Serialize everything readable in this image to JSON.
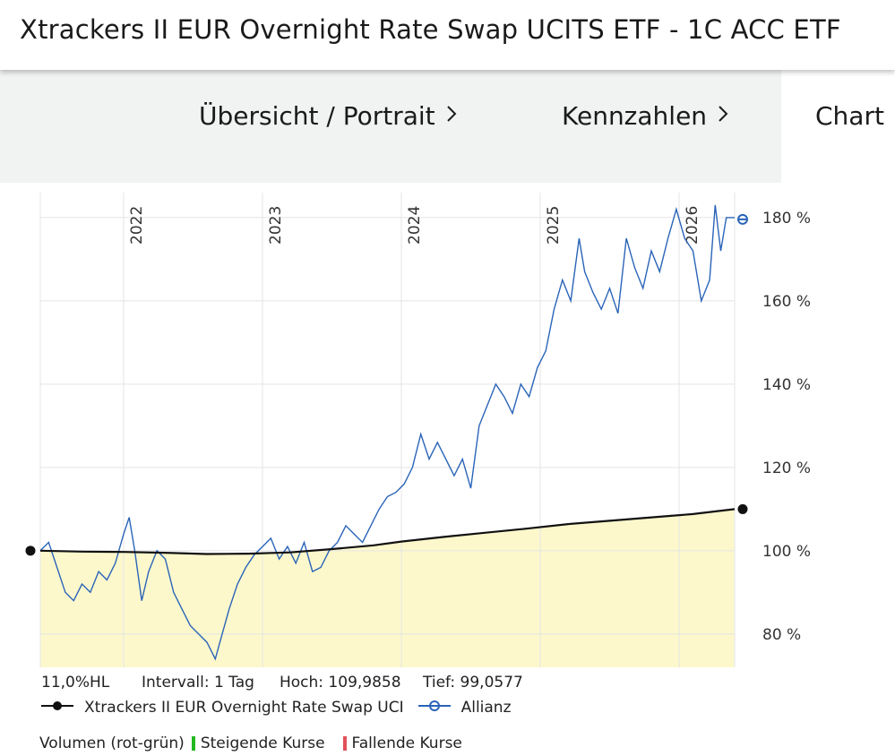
{
  "header": {
    "title": "Xtrackers II EUR Overnight Rate Swap UCITS ETF - 1C ACC ETF"
  },
  "nav": {
    "items": [
      {
        "label": "Übersicht / Portrait"
      },
      {
        "label": "Kennzahlen"
      },
      {
        "label": "Chart"
      }
    ]
  },
  "chart_info": {
    "range": "11,0%HL",
    "interval": "Intervall: 1 Tag",
    "high": "Hoch: 109,9858",
    "low": "Tief: 99,0577"
  },
  "legend": {
    "series_1": "Xtrackers II EUR Overnight Rate Swap UCI",
    "series_2": "Allianz"
  },
  "volume": {
    "label": "Volumen (rot-grün)",
    "up": "Steigende Kurse",
    "down": "Fallende Kurse",
    "up_color": "#22b822",
    "down_color": "#e0505a"
  },
  "chart_data": {
    "type": "line",
    "x_tick_labels": [
      "2022",
      "2023",
      "2024",
      "2025",
      "2026"
    ],
    "x_tick_positions": [
      2022.0,
      2023.0,
      2024.0,
      2025.0,
      2026.0
    ],
    "xlim": [
      2021.4,
      2026.4
    ],
    "ylim": [
      72,
      186
    ],
    "y_ticks": [
      80,
      100,
      120,
      140,
      160,
      180
    ],
    "y_tick_labels": [
      "80 %",
      "100 %",
      "120 %",
      "140 %",
      "160 %",
      "180 %"
    ],
    "grid": true,
    "series": [
      {
        "name": "Xtrackers II EUR Overnight Rate Swap UCI",
        "color": "#111111",
        "fill": "#fdf8cc",
        "points": [
          [
            2021.4,
            100.0
          ],
          [
            2021.7,
            99.8
          ],
          [
            2022.0,
            99.7
          ],
          [
            2022.3,
            99.5
          ],
          [
            2022.6,
            99.2
          ],
          [
            2022.9,
            99.3
          ],
          [
            2023.2,
            99.6
          ],
          [
            2023.5,
            100.4
          ],
          [
            2023.8,
            101.3
          ],
          [
            2024.0,
            102.2
          ],
          [
            2024.3,
            103.3
          ],
          [
            2024.6,
            104.3
          ],
          [
            2024.9,
            105.3
          ],
          [
            2025.2,
            106.4
          ],
          [
            2025.5,
            107.2
          ],
          [
            2025.8,
            108.0
          ],
          [
            2026.1,
            108.8
          ],
          [
            2026.4,
            109.98
          ]
        ]
      },
      {
        "name": "Allianz",
        "color": "#2a64b8",
        "points": [
          [
            2021.4,
            100
          ],
          [
            2021.46,
            102
          ],
          [
            2021.52,
            96
          ],
          [
            2021.58,
            90
          ],
          [
            2021.64,
            88
          ],
          [
            2021.7,
            92
          ],
          [
            2021.76,
            90
          ],
          [
            2021.82,
            95
          ],
          [
            2021.88,
            93
          ],
          [
            2021.94,
            97
          ],
          [
            2022.0,
            104
          ],
          [
            2022.04,
            108
          ],
          [
            2022.08,
            100
          ],
          [
            2022.13,
            88
          ],
          [
            2022.18,
            95
          ],
          [
            2022.24,
            100
          ],
          [
            2022.3,
            98
          ],
          [
            2022.36,
            90
          ],
          [
            2022.42,
            86
          ],
          [
            2022.48,
            82
          ],
          [
            2022.54,
            80
          ],
          [
            2022.6,
            78
          ],
          [
            2022.66,
            74
          ],
          [
            2022.71,
            80
          ],
          [
            2022.76,
            86
          ],
          [
            2022.82,
            92
          ],
          [
            2022.88,
            96
          ],
          [
            2022.94,
            99
          ],
          [
            2023.0,
            101
          ],
          [
            2023.06,
            103
          ],
          [
            2023.12,
            98
          ],
          [
            2023.18,
            101
          ],
          [
            2023.24,
            97
          ],
          [
            2023.3,
            102
          ],
          [
            2023.36,
            95
          ],
          [
            2023.42,
            96
          ],
          [
            2023.48,
            100
          ],
          [
            2023.54,
            102
          ],
          [
            2023.6,
            106
          ],
          [
            2023.66,
            104
          ],
          [
            2023.72,
            102
          ],
          [
            2023.78,
            106
          ],
          [
            2023.84,
            110
          ],
          [
            2023.9,
            113
          ],
          [
            2023.96,
            114
          ],
          [
            2024.02,
            116
          ],
          [
            2024.08,
            120
          ],
          [
            2024.14,
            128
          ],
          [
            2024.2,
            122
          ],
          [
            2024.26,
            126
          ],
          [
            2024.32,
            122
          ],
          [
            2024.38,
            118
          ],
          [
            2024.44,
            122
          ],
          [
            2024.5,
            115
          ],
          [
            2024.56,
            130
          ],
          [
            2024.62,
            135
          ],
          [
            2024.68,
            140
          ],
          [
            2024.74,
            137
          ],
          [
            2024.8,
            133
          ],
          [
            2024.86,
            140
          ],
          [
            2024.92,
            137
          ],
          [
            2024.98,
            144
          ],
          [
            2025.04,
            148
          ],
          [
            2025.1,
            158
          ],
          [
            2025.16,
            165
          ],
          [
            2025.22,
            160
          ],
          [
            2025.28,
            175
          ],
          [
            2025.32,
            167
          ],
          [
            2025.38,
            162
          ],
          [
            2025.44,
            158
          ],
          [
            2025.5,
            163
          ],
          [
            2025.56,
            157
          ],
          [
            2025.62,
            175
          ],
          [
            2025.68,
            168
          ],
          [
            2025.74,
            163
          ],
          [
            2025.8,
            172
          ],
          [
            2025.86,
            167
          ],
          [
            2025.92,
            175
          ],
          [
            2025.98,
            182
          ],
          [
            2026.04,
            175
          ],
          [
            2026.1,
            172
          ],
          [
            2026.16,
            160
          ],
          [
            2026.22,
            165
          ],
          [
            2026.26,
            183
          ],
          [
            2026.3,
            172
          ],
          [
            2026.34,
            180
          ],
          [
            2026.4,
            180
          ]
        ]
      }
    ]
  }
}
